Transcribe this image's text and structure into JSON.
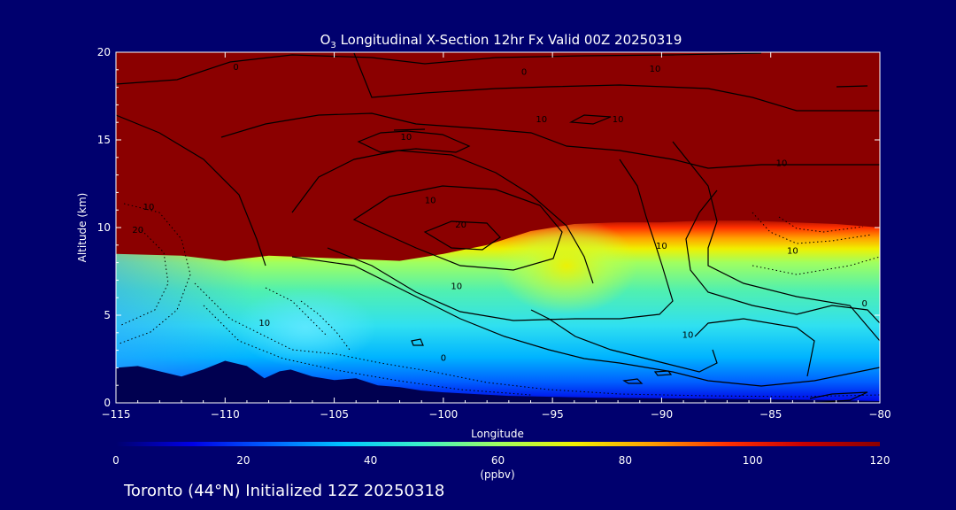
{
  "chart_data": {
    "type": "heatmap",
    "title": "O3 Longitudinal X-Section 12hr  Fx Valid 00Z 20250319",
    "title_parts": {
      "species": "O",
      "subscript": "3",
      "rest": " Longitudinal X-Section 12hr  Fx Valid 00Z 20250319"
    },
    "xlabel": "Longitude",
    "ylabel": "Altitude (km)",
    "xlim": [
      -115,
      -80
    ],
    "ylim": [
      0,
      20
    ],
    "x_ticks": [
      -115,
      -110,
      -105,
      -100,
      -95,
      -90,
      -85,
      -80
    ],
    "x_tick_labels": [
      "−115",
      "−110",
      "−105",
      "−100",
      "−95",
      "−90",
      "−85",
      "−80"
    ],
    "y_ticks": [
      0,
      5,
      10,
      15,
      20
    ],
    "y_tick_labels": [
      "0",
      "5",
      "10",
      "15",
      "20"
    ],
    "colorbar": {
      "label": "(ppbv)",
      "range": [
        0,
        120
      ],
      "ticks": [
        0,
        20,
        40,
        60,
        80,
        100,
        120
      ],
      "tick_labels": [
        "0",
        "20",
        "40",
        "60",
        "80",
        "100",
        "120"
      ],
      "colors": [
        "#00006e",
        "#0000e6",
        "#0060ff",
        "#00c8ff",
        "#3cf0c8",
        "#a0ff60",
        "#f0f000",
        "#ffa000",
        "#ff3000",
        "#c80000",
        "#8b0000"
      ]
    },
    "field_description": "O3 mixing ratio (ppbv); dark red above the tropopause, cyan/green mid-troposphere, blue near the surface",
    "tropopause_altitude_km": {
      "x": [
        -115,
        -112,
        -110,
        -108,
        -106,
        -104,
        -102,
        -100,
        -98,
        -96,
        -94,
        -92,
        -90,
        -88,
        -86,
        -84,
        -82,
        -80
      ],
      "y": [
        8.5,
        8.4,
        8.1,
        8.4,
        8.3,
        8.2,
        8.1,
        8.5,
        9.0,
        9.8,
        10.2,
        10.3,
        10.3,
        10.4,
        10.4,
        10.3,
        10.2,
        10.0
      ]
    },
    "terrain_km": {
      "x": [
        -115,
        -114,
        -113,
        -112,
        -111,
        -110,
        -109,
        -108.2,
        -107.5,
        -107,
        -106,
        -105,
        -104,
        -103,
        -102,
        -101,
        -100,
        -97,
        -93,
        -89,
        -85,
        -82,
        -80
      ],
      "y": [
        2.0,
        2.1,
        1.8,
        1.5,
        1.9,
        2.4,
        2.1,
        1.4,
        1.8,
        1.9,
        1.5,
        1.3,
        1.4,
        1.0,
        0.9,
        0.7,
        0.6,
        0.4,
        0.3,
        0.25,
        0.2,
        0.15,
        0.1
      ]
    },
    "contour_labels": [
      {
        "text": "0",
        "x": -109.5,
        "y": 19.0
      },
      {
        "text": "0",
        "x": -96.3,
        "y": 18.7
      },
      {
        "text": "10",
        "x": -90.3,
        "y": 18.9
      },
      {
        "text": "10",
        "x": -95.5,
        "y": 16.0
      },
      {
        "text": "10",
        "x": -101.7,
        "y": 15.0
      },
      {
        "text": "10",
        "x": -92.0,
        "y": 16.0
      },
      {
        "text": "10",
        "x": -84.5,
        "y": 13.5
      },
      {
        "text": "10",
        "x": -113.5,
        "y": 11.0
      },
      {
        "text": "20",
        "x": -114.0,
        "y": 9.7
      },
      {
        "text": "10",
        "x": -100.6,
        "y": 11.4
      },
      {
        "text": "20",
        "x": -99.2,
        "y": 10.0
      },
      {
        "text": "10",
        "x": -99.4,
        "y": 6.5
      },
      {
        "text": "10",
        "x": -90.0,
        "y": 8.8
      },
      {
        "text": "10",
        "x": -84.0,
        "y": 8.5
      },
      {
        "text": "0",
        "x": -80.7,
        "y": 5.5
      },
      {
        "text": "10",
        "x": -108.2,
        "y": 4.4
      },
      {
        "text": "0",
        "x": -100.0,
        "y": 2.4
      },
      {
        "text": "10",
        "x": -88.8,
        "y": 3.7
      }
    ]
  },
  "footer": {
    "text": "Toronto (44°N) Initialized 12Z 20250318"
  },
  "colors": {
    "background": "#00006e",
    "text": "#ffffff",
    "contour": "#000000"
  }
}
